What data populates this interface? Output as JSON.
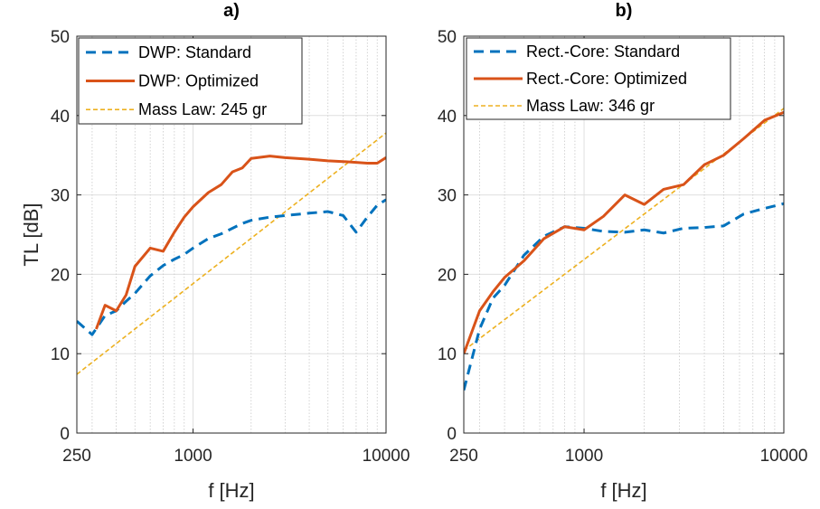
{
  "chart_data": [
    {
      "type": "line",
      "title": "a)",
      "xlabel": "f [Hz]",
      "ylabel": "TL [dB]",
      "xscale": "log",
      "xlim": [
        250,
        10000
      ],
      "ylim": [
        0,
        50
      ],
      "xticks": [
        250,
        1000,
        10000
      ],
      "xtick_labels": [
        "250",
        "1000",
        "10000"
      ],
      "yticks": [
        0,
        10,
        20,
        30,
        40,
        50
      ],
      "ytick_labels": [
        "0",
        "10",
        "20",
        "30",
        "40",
        "50"
      ],
      "grid": true,
      "legend_position": "top-left",
      "series": [
        {
          "name": "DWP: Standard",
          "color": "#0072BD",
          "style": "dashed",
          "x": [
            250,
            300,
            350,
            400,
            450,
            500,
            600,
            700,
            800,
            900,
            1000,
            1200,
            1400,
            1600,
            1800,
            2000,
            2500,
            3000,
            4000,
            5000,
            6000,
            7000,
            8000,
            9000,
            10000
          ],
          "y": [
            14.1,
            12.4,
            14.8,
            15.4,
            16.6,
            17.6,
            19.8,
            21.1,
            21.9,
            22.5,
            23.3,
            24.5,
            25.1,
            25.8,
            26.4,
            26.8,
            27.2,
            27.4,
            27.7,
            27.9,
            27.4,
            25.3,
            27.2,
            28.7,
            29.4
          ]
        },
        {
          "name": "DWP: Optimized",
          "color": "#D95319",
          "style": "solid",
          "x": [
            315,
            350,
            400,
            450,
            500,
            600,
            700,
            800,
            900,
            1000,
            1200,
            1400,
            1600,
            1800,
            2000,
            2500,
            3000,
            4000,
            5000,
            6000,
            7000,
            8000,
            9000,
            10000
          ],
          "y": [
            13.1,
            16.1,
            15.4,
            17.4,
            21.0,
            23.3,
            22.9,
            25.3,
            27.2,
            28.5,
            30.3,
            31.3,
            32.9,
            33.4,
            34.6,
            34.9,
            34.7,
            34.5,
            34.3,
            34.2,
            34.1,
            34.0,
            34.0,
            34.7
          ]
        },
        {
          "name": "Mass Law: 245 gr",
          "color": "#EDB120",
          "style": "dashed-thin",
          "x": [
            250,
            10000
          ],
          "y": [
            7.4,
            37.8
          ]
        }
      ]
    },
    {
      "type": "line",
      "title": "b)",
      "xlabel": "f [Hz]",
      "ylabel": "",
      "xscale": "log",
      "xlim": [
        250,
        10000
      ],
      "ylim": [
        0,
        50
      ],
      "xticks": [
        250,
        1000,
        10000
      ],
      "xtick_labels": [
        "250",
        "1000",
        "10000"
      ],
      "yticks": [
        0,
        10,
        20,
        30,
        40,
        50
      ],
      "ytick_labels": [
        "0",
        "10",
        "20",
        "30",
        "40",
        "50"
      ],
      "grid": true,
      "legend_position": "top-left",
      "series": [
        {
          "name": "Rect.-Core: Standard",
          "color": "#0072BD",
          "style": "dashed",
          "x": [
            250,
            300,
            350,
            400,
            500,
            630,
            800,
            1000,
            1250,
            1600,
            2000,
            2500,
            3150,
            4000,
            5000,
            6300,
            8000,
            10000
          ],
          "y": [
            5.4,
            13.1,
            17.0,
            18.6,
            22.4,
            24.8,
            26.0,
            25.8,
            25.4,
            25.3,
            25.6,
            25.2,
            25.8,
            25.9,
            26.1,
            27.6,
            28.3,
            28.9
          ]
        },
        {
          "name": "Rect.-Core: Optimized",
          "color": "#D95319",
          "style": "solid",
          "x": [
            250,
            300,
            350,
            400,
            500,
            630,
            800,
            1000,
            1250,
            1600,
            2000,
            2500,
            3150,
            4000,
            5000,
            6300,
            8000,
            10000
          ],
          "y": [
            10.0,
            15.4,
            17.8,
            19.6,
            21.7,
            24.5,
            26.0,
            25.6,
            27.3,
            30.0,
            28.8,
            30.7,
            31.3,
            33.8,
            35.0,
            37.1,
            39.4,
            40.4
          ]
        },
        {
          "name": "Mass Law: 346 gr",
          "color": "#EDB120",
          "style": "dashed-thin",
          "x": [
            250,
            10000
          ],
          "y": [
            10.4,
            40.9
          ]
        }
      ]
    }
  ]
}
